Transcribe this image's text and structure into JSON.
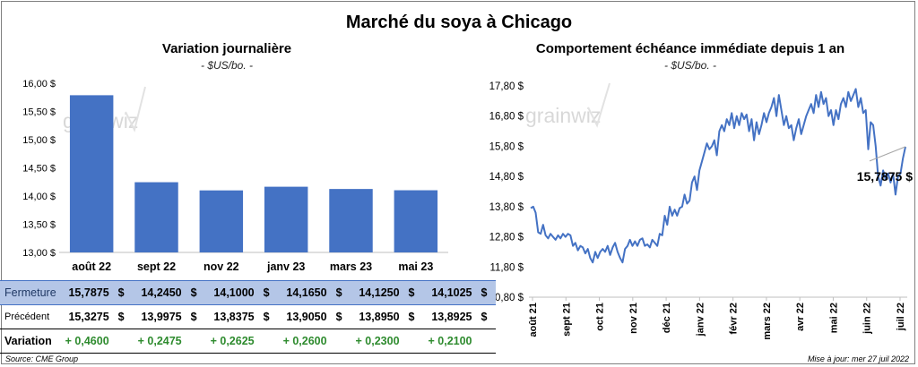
{
  "title": "Marché du soya à Chicago",
  "watermark": "grainwiz",
  "colors": {
    "bar": "#4472c4",
    "line": "#4472c4",
    "positive": "#2e8b2e",
    "highlight_row": "#b4c6e7"
  },
  "chart_data": [
    {
      "type": "bar",
      "title": "Variation journalière",
      "subtitle": "- $US/bo. -",
      "categories": [
        "août 22",
        "sept 22",
        "nov 22",
        "janv 23",
        "mars 23",
        "mai 23"
      ],
      "values": [
        15.7875,
        14.245,
        14.1,
        14.165,
        14.125,
        14.1025
      ],
      "yticks": [
        "13,00 $",
        "13,50 $",
        "14,00 $",
        "14,50 $",
        "15,00 $",
        "15,50 $",
        "16,00 $"
      ],
      "ylim": [
        13.0,
        16.0
      ],
      "grid": false
    },
    {
      "type": "line",
      "title": "Comportement échéance immédiate depuis 1 an",
      "subtitle": "- $US/bo. -",
      "xticks": [
        "août 21",
        "sept 21",
        "oct 21",
        "nov 21",
        "déc 21",
        "janv 22",
        "févr 22",
        "mars 22",
        "avr 22",
        "mai 22",
        "juin 22",
        "juil 22"
      ],
      "yticks": [
        "10,80 $",
        "11,80 $",
        "12,80 $",
        "13,80 $",
        "14,80 $",
        "15,80 $",
        "16,80 $",
        "17,80 $"
      ],
      "ylim": [
        10.8,
        17.8
      ],
      "last_value_label": "15,7875 $",
      "series": [
        {
          "values": [
            13.75,
            13.8,
            13.6,
            12.95,
            12.9,
            13.2,
            12.85,
            12.75,
            12.9,
            12.8,
            12.7,
            12.85,
            12.75,
            12.9,
            12.8,
            12.9,
            12.85,
            12.5,
            12.6,
            12.35,
            12.5,
            12.45,
            12.25,
            12.4,
            12.1,
            11.95,
            12.3,
            12.1,
            12.3,
            12.4,
            12.3,
            12.5,
            12.2,
            12.45,
            12.6,
            12.3,
            12.1,
            11.95,
            12.4,
            12.5,
            12.7,
            12.5,
            12.65,
            12.5,
            12.7,
            12.75,
            12.5,
            12.55,
            12.45,
            12.7,
            12.6,
            12.5,
            12.9,
            12.85,
            13.5,
            13.2,
            13.8,
            13.5,
            13.7,
            13.5,
            13.75,
            13.8,
            14.2,
            13.9,
            14.0,
            14.6,
            14.8,
            14.35,
            15.0,
            15.3,
            15.6,
            15.9,
            15.7,
            15.8,
            16.0,
            15.5,
            16.3,
            16.5,
            16.3,
            16.7,
            16.5,
            16.9,
            16.4,
            16.8,
            16.5,
            16.9,
            16.7,
            16.85,
            16.3,
            16.7,
            16.0,
            16.6,
            16.2,
            16.5,
            16.9,
            16.6,
            16.9,
            17.1,
            17.4,
            16.8,
            17.5,
            17.0,
            16.5,
            16.8,
            16.4,
            16.5,
            16.0,
            16.4,
            16.7,
            16.2,
            16.5,
            16.8,
            17.0,
            17.2,
            16.9,
            17.5,
            17.1,
            17.6,
            17.2,
            17.4,
            16.8,
            17.0,
            16.5,
            17.0,
            16.7,
            17.2,
            17.4,
            17.1,
            17.6,
            17.3,
            17.5,
            17.7,
            17.1,
            17.4,
            16.9,
            17.0,
            15.7,
            16.6,
            16.5,
            15.8,
            14.8,
            14.5,
            15.0,
            14.7,
            14.9,
            14.6,
            14.9,
            14.2,
            14.8,
            14.9,
            15.4,
            15.7875
          ]
        }
      ]
    }
  ],
  "table": {
    "rows": [
      {
        "label": "Fermeture",
        "values": [
          "15,7875",
          "14,2450",
          "14,1000",
          "14,1650",
          "14,1250",
          "14,1025"
        ],
        "currency": "$"
      },
      {
        "label": "Précédent",
        "values": [
          "15,3275",
          "13,9975",
          "13,8375",
          "13,9050",
          "13,8950",
          "13,8925"
        ],
        "currency": "$"
      },
      {
        "label": "Variation",
        "values": [
          "+ 0,4600",
          "+ 0,2475",
          "+ 0,2625",
          "+ 0,2600",
          "+ 0,2300",
          "+ 0,2100"
        ]
      }
    ]
  },
  "footer": {
    "source": "Source: CME Group",
    "updated": "Mise à jour: mer 27 juil 2022"
  }
}
